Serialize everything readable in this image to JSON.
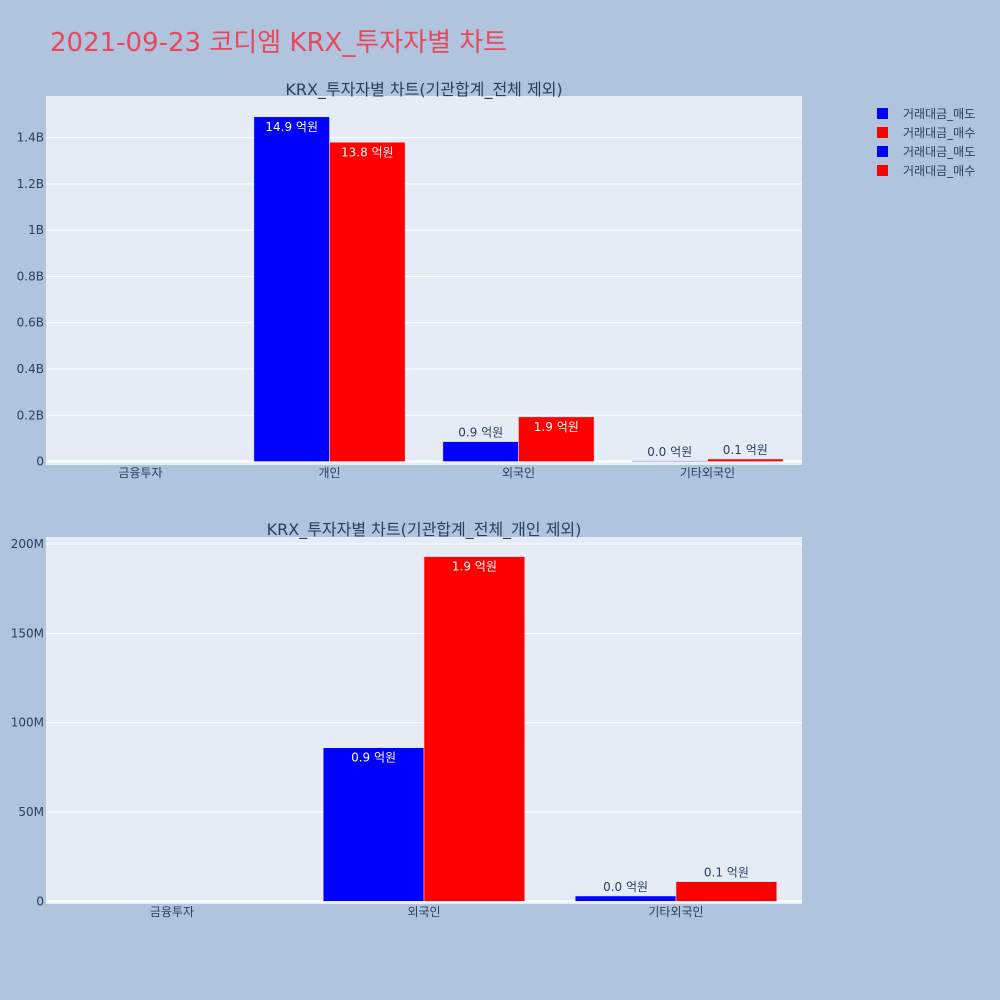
{
  "title": "2021-09-23 코디엠 KRX_투자자별 차트",
  "legend": [
    {
      "label": "거래대금_매도",
      "color": "#0000ff"
    },
    {
      "label": "거래대금_매수",
      "color": "#ff0000"
    },
    {
      "label": "거래대금_매도",
      "color": "#0000ff"
    },
    {
      "label": "거래대금_매수",
      "color": "#ff0000"
    }
  ],
  "chart_data": [
    {
      "type": "bar",
      "title": "KRX_투자자별 차트(기관합계_전체 제외)",
      "categories": [
        "금융투자",
        "개인",
        "외국인",
        "기타외국인"
      ],
      "series": [
        {
          "name": "거래대금_매도",
          "color": "#0000ff",
          "values": [
            0,
            1490000000,
            86000000,
            3000000
          ],
          "labels": [
            "",
            "14.9 억원",
            "0.9 억원",
            "0.0 억원"
          ]
        },
        {
          "name": "거래대금_매수",
          "color": "#ff0000",
          "values": [
            0,
            1380000000,
            193000000,
            11000000
          ],
          "labels": [
            "",
            "13.8 억원",
            "1.9 억원",
            "0.1 억원"
          ]
        }
      ],
      "ylim": [
        -15000000,
        1580000000
      ],
      "yticks": [
        0,
        200000000,
        400000000,
        600000000,
        800000000,
        1000000000,
        1200000000,
        1400000000
      ],
      "yticklabels": [
        "0",
        "0.2B",
        "0.4B",
        "0.6B",
        "0.8B",
        "1B",
        "1.2B",
        "1.4B"
      ],
      "grid": true
    },
    {
      "type": "bar",
      "title": "KRX_투자자별 차트(기관합계_전체_개인 제외)",
      "categories": [
        "금융투자",
        "외국인",
        "기타외국인"
      ],
      "series": [
        {
          "name": "거래대금_매도",
          "color": "#0000ff",
          "values": [
            0,
            86000000,
            3000000
          ],
          "labels": [
            "",
            "0.9 억원",
            "0.0 억원"
          ]
        },
        {
          "name": "거래대금_매수",
          "color": "#ff0000",
          "values": [
            0,
            193000000,
            11000000
          ],
          "labels": [
            "",
            "1.9 억원",
            "0.1 억원"
          ]
        }
      ],
      "ylim": [
        -1500000,
        204000000
      ],
      "yticks": [
        0,
        50000000,
        100000000,
        150000000,
        200000000
      ],
      "yticklabels": [
        "0",
        "50M",
        "100M",
        "150M",
        "200M"
      ],
      "grid": true
    }
  ]
}
